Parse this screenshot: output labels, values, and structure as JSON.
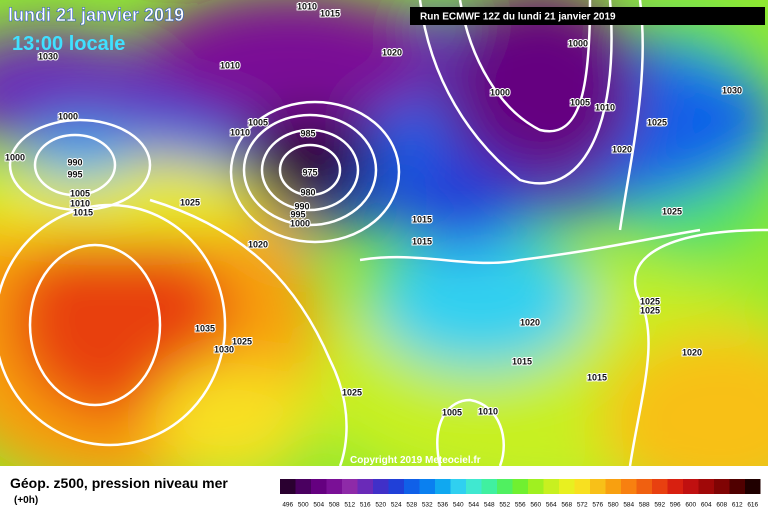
{
  "header": {
    "date": "lundi 21 janvier 2019",
    "time": "13:00 locale",
    "run": "Run ECMWF 12Z du lundi 21 janvier 2019"
  },
  "map": {
    "isobar_labels": [
      1010,
      1015,
      1030,
      1010,
      1020,
      1000,
      1000,
      1005,
      985,
      1010,
      1000,
      1005,
      1010,
      1025,
      1030,
      990,
      995,
      975,
      1000,
      980,
      990,
      995,
      1000,
      1005,
      1010,
      1015,
      1025,
      1020,
      1025,
      1015,
      1015,
      1020,
      1035,
      1025,
      1030,
      1025,
      1025,
      1020,
      1020,
      1015,
      1015,
      1025,
      1005,
      1010
    ],
    "copyright": "Copyright 2019 Meteociel.fr"
  },
  "legend": {
    "title": "Géop. z500, pression niveau mer",
    "step": "(+0h)",
    "values": [
      496,
      500,
      504,
      508,
      512,
      516,
      520,
      524,
      528,
      532,
      536,
      540,
      544,
      548,
      552,
      556,
      560,
      564,
      568,
      572,
      576,
      580,
      584,
      588,
      592,
      596,
      600,
      604,
      608,
      612,
      616
    ],
    "colors": [
      "#2a0030",
      "#4a0060",
      "#650080",
      "#7a1096",
      "#8e2aa8",
      "#6a2ab8",
      "#4030c8",
      "#2040d8",
      "#1060e8",
      "#0a80f0",
      "#10a8f0",
      "#30d0f0",
      "#40e8d0",
      "#40f0a0",
      "#50f060",
      "#70f030",
      "#a0f020",
      "#c8f020",
      "#e8f020",
      "#f8e020",
      "#f8c018",
      "#f8a010",
      "#f88010",
      "#f06010",
      "#e84010",
      "#d82010",
      "#c01010",
      "#a00808",
      "#800404",
      "#500000",
      "#200000"
    ]
  }
}
